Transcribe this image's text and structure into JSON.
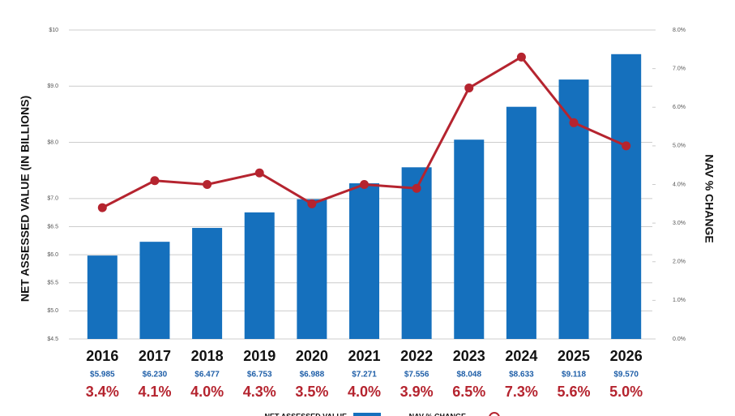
{
  "chart_data": {
    "type": "bar-line",
    "y_label": "NET ASSESSED VALUE (IN BILLIONS)",
    "y2_label": "NAV % CHANGE",
    "categories": [
      "2016",
      "2017",
      "2018",
      "2019",
      "2020",
      "2021",
      "2022",
      "2023",
      "2024",
      "2025",
      "2026"
    ],
    "series": [
      {
        "name": "NET ASSESSED VALUE",
        "type": "bar",
        "color": "#1570bd",
        "values": [
          5.985,
          6.23,
          6.477,
          6.753,
          6.988,
          7.271,
          7.556,
          8.048,
          8.633,
          9.118,
          9.57
        ],
        "value_labels": [
          "$5.985",
          "$6.230",
          "$6.477",
          "$6.753",
          "$6.988",
          "$7.271",
          "$7.556",
          "$8.048",
          "$8.633",
          "$9.118",
          "$9.570"
        ]
      },
      {
        "name": "NAV % CHANGE",
        "type": "line",
        "axis": "y2",
        "color": "#b5242f",
        "values": [
          3.4,
          4.1,
          4.0,
          4.3,
          3.5,
          4.0,
          3.9,
          6.5,
          7.3,
          5.6,
          5.0
        ],
        "value_labels": [
          "3.4%",
          "4.1%",
          "4.0%",
          "4.3%",
          "3.5%",
          "4.0%",
          "3.9%",
          "6.5%",
          "7.3%",
          "5.6%",
          "5.0%"
        ]
      }
    ],
    "ylim": [
      4.5,
      10
    ],
    "yticks": [
      {
        "value": 4.5,
        "label": "$4.5"
      },
      {
        "value": 5,
        "label": "$5.0"
      },
      {
        "value": 5.5,
        "label": "$5.5"
      },
      {
        "value": 6,
        "label": "$6.0"
      },
      {
        "value": 6.5,
        "label": "$6.5"
      },
      {
        "value": 7,
        "label": "$7.0"
      },
      {
        "value": 8,
        "label": "$8.0"
      },
      {
        "value": 9,
        "label": "$9.0"
      },
      {
        "value": 10,
        "label": "$10"
      }
    ],
    "y2lim": [
      0,
      8
    ],
    "y2ticks": [
      {
        "value": 0,
        "label": "0.0%"
      },
      {
        "value": 1,
        "label": "1.0%"
      },
      {
        "value": 2,
        "label": "2.0%"
      },
      {
        "value": 3,
        "label": "3.0%"
      },
      {
        "value": 4,
        "label": "4.0%"
      },
      {
        "value": 5,
        "label": "5.0%"
      },
      {
        "value": 6,
        "label": "6.0%"
      },
      {
        "value": 7,
        "label": "7.0%"
      },
      {
        "value": 8,
        "label": "8.0%"
      }
    ],
    "grid": true,
    "legend": "bottom"
  }
}
